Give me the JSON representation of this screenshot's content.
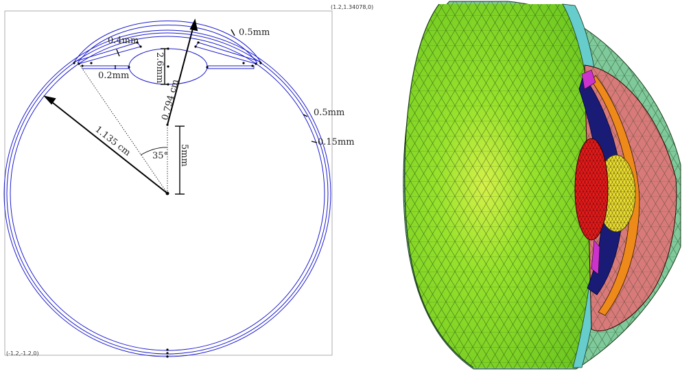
{
  "left_panel": {
    "corner_top_right": "(1.2,1.34078,0)",
    "corner_bottom_left": "(-1.2,-1.2,0)",
    "labels": {
      "cornea_thickness": "0.4mm",
      "iris_thickness": "0.2mm",
      "lens_thickness": "2.6mm",
      "sclera_top": "0.5mm",
      "sclera_side": "0.5mm",
      "retina": "0.15mm",
      "anterior_radius": "0.794 cm",
      "eye_radius": "1.135 cm",
      "lens_offset": "5mm",
      "angle": "35°"
    },
    "colors": {
      "outline": "#1a1acc",
      "dimension": "#000000",
      "frame": "#999999"
    }
  },
  "right_panel": {
    "regions": [
      "vitreous",
      "sclera",
      "retina",
      "lens",
      "iris",
      "ciliary",
      "aqueous",
      "cornea"
    ],
    "colors": {
      "vitreous": "#8ce02a",
      "sclera": "#7fc99a",
      "retina": "#66cccc",
      "lens_red": "#e61a1a",
      "lens_yellow": "#e8e030",
      "iris": "#1a1a7a",
      "ciliary": "#ee8a1a",
      "cornea": "#d97a7a",
      "magenta": "#cc33cc"
    }
  }
}
